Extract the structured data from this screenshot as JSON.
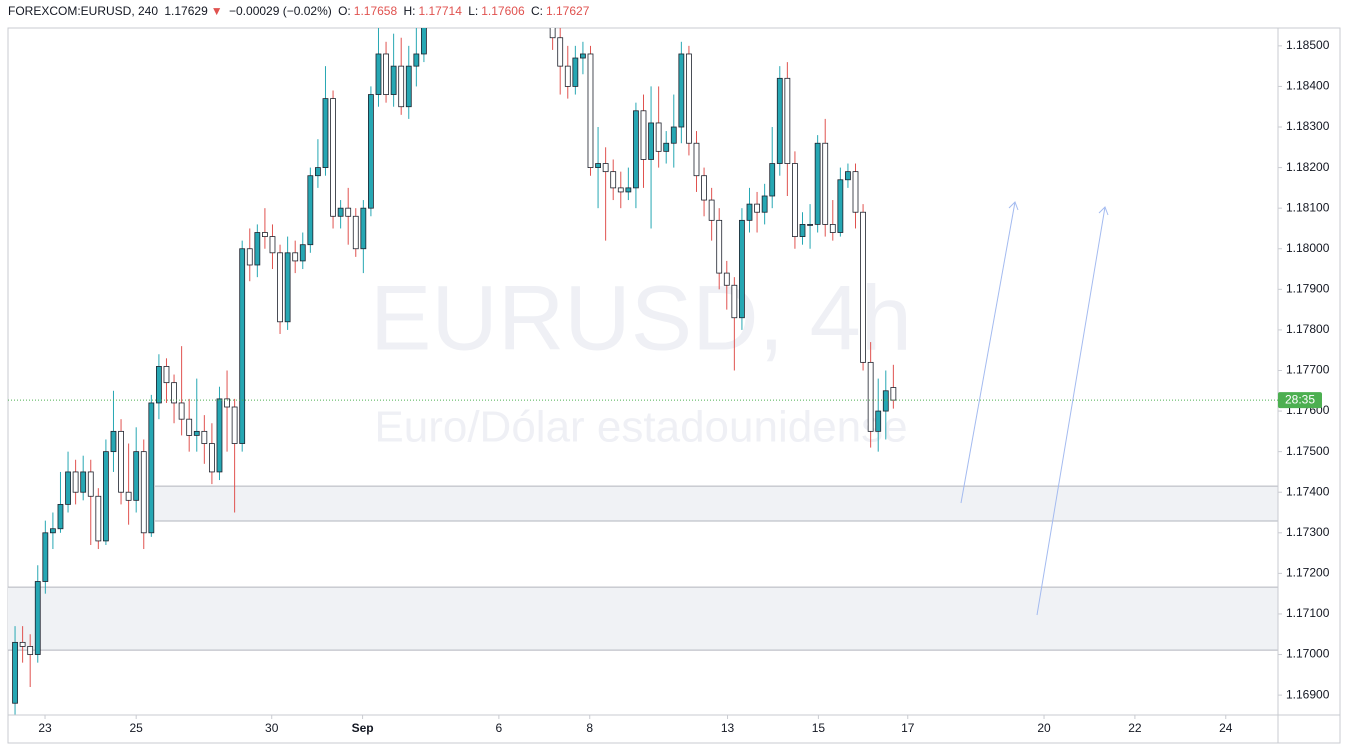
{
  "chart_data": {
    "type": "candlestick",
    "header": {
      "symbol": "FOREXCOM:EURUSD, 240",
      "last": "1.17629",
      "arrow": "▼",
      "change": "−0.00029 (−0.02%)",
      "o_label": "O:",
      "o": "1.17658",
      "h_label": "H:",
      "h": "1.17714",
      "l_label": "L:",
      "l": "1.17606",
      "c_label": "C:",
      "c": "1.17627"
    },
    "watermark": "EURUSD, 4h",
    "watermark_subtitle": "Euro/Dólar estadounidense",
    "countdown": "28:35",
    "up_color": "#26a7b3",
    "down_color": "#ffffff",
    "border_color": "#1e222d",
    "up_wick_color": "#26a7b3",
    "down_wick_color": "#e0524f",
    "price_line_color": "#4caf50",
    "zone_color": "#f0f2f5",
    "zones": [
      {
        "from": 18.5,
        "top": 1.17415,
        "bottom": 1.17329
      },
      {
        "from": -0.93,
        "top": 1.17166,
        "bottom": 1.17011
      }
    ],
    "open": [
      1.1688,
      1.1703,
      1.1702,
      1.17,
      1.1718,
      1.173,
      1.1731,
      1.1737,
      1.1745,
      1.174,
      1.1745,
      1.1739,
      1.1728,
      1.175,
      1.1755,
      1.174,
      1.1738,
      1.175,
      1.173,
      1.1762,
      1.1771,
      1.1767,
      1.1762,
      1.1758,
      1.1754,
      1.1755,
      1.1752,
      1.1745,
      1.1763,
      1.1761,
      1.1752,
      1.18,
      1.1796,
      1.1804,
      1.1803,
      1.1799,
      1.1782,
      1.1799,
      1.1797,
      1.1801,
      1.1818,
      1.182,
      1.1837,
      1.1808,
      1.181,
      1.1808,
      1.18,
      1.181,
      1.1838,
      1.1848,
      1.1838,
      1.1845,
      1.1835,
      1.1845,
      1.1848,
      null,
      null,
      null,
      null,
      null,
      null,
      null,
      null,
      null,
      null,
      null,
      null,
      null,
      null,
      null,
      null,
      1.1856,
      1.1852,
      1.1845,
      1.184,
      1.1847,
      1.1848,
      1.182,
      1.1821,
      1.1819,
      1.1815,
      1.1814,
      1.1815,
      1.1834,
      1.1822,
      1.1831,
      1.1824,
      1.1826,
      1.183,
      1.1848,
      1.1826,
      1.1818,
      1.1812,
      1.1807,
      1.1794,
      1.1791,
      1.1783,
      1.1807,
      1.1811,
      1.1809,
      1.1813,
      1.1821,
      1.1842,
      1.1821,
      1.1803,
      1.1806,
      1.1806,
      1.1826,
      1.1806,
      1.1804,
      1.1817,
      1.1819,
      1.1809,
      1.1772,
      1.1755,
      1.176,
      1.17658
    ],
    "high": [
      1.1707,
      1.1707,
      1.1705,
      1.1722,
      1.1733,
      1.1735,
      1.1745,
      1.175,
      1.1748,
      1.1749,
      1.1748,
      1.1741,
      1.1753,
      1.1765,
      1.1758,
      1.1752,
      1.1756,
      1.1753,
      1.1764,
      1.1774,
      1.1773,
      1.1769,
      1.1776,
      1.1763,
      1.1768,
      1.1759,
      1.1757,
      1.1766,
      1.177,
      1.1763,
      1.1802,
      1.1805,
      1.1806,
      1.181,
      1.1806,
      1.1801,
      1.1803,
      1.1802,
      1.1804,
      1.182,
      1.1827,
      1.1845,
      1.1839,
      1.1812,
      1.1815,
      1.181,
      1.1812,
      1.184,
      1.1856,
      1.1851,
      1.1853,
      1.1852,
      1.185,
      1.1855,
      1.186,
      null,
      null,
      null,
      null,
      null,
      null,
      null,
      null,
      null,
      null,
      null,
      null,
      null,
      null,
      null,
      null,
      1.1858,
      1.1855,
      1.185,
      1.185,
      1.1851,
      1.185,
      1.183,
      1.1825,
      1.1822,
      1.1819,
      1.182,
      1.1836,
      1.1838,
      1.184,
      1.184,
      1.1829,
      1.1838,
      1.1851,
      1.185,
      1.1829,
      1.182,
      1.1815,
      1.181,
      1.1797,
      1.1793,
      1.181,
      1.1815,
      1.1814,
      1.1816,
      1.183,
      1.1845,
      1.1846,
      1.1824,
      1.1809,
      1.1811,
      1.1828,
      1.1832,
      1.1812,
      1.182,
      1.1821,
      1.1821,
      1.1811,
      1.1777,
      1.1768,
      1.177,
      1.17714
    ],
    "low": [
      1.1684,
      1.1698,
      1.1692,
      1.1698,
      1.1715,
      1.1726,
      1.173,
      1.1735,
      1.1737,
      1.1738,
      1.1727,
      1.1726,
      1.1727,
      1.1745,
      1.1737,
      1.1732,
      1.1735,
      1.1726,
      1.1729,
      1.1758,
      1.1762,
      1.1757,
      1.1754,
      1.175,
      1.175,
      1.1747,
      1.1742,
      1.1743,
      1.175,
      1.1735,
      1.175,
      1.1792,
      1.1793,
      1.18,
      1.1795,
      1.1779,
      1.178,
      1.1794,
      1.1795,
      1.1799,
      1.1815,
      1.1818,
      1.1805,
      1.1805,
      1.1801,
      1.1798,
      1.1794,
      1.1808,
      1.1835,
      1.1836,
      1.1835,
      1.1833,
      1.1832,
      1.184,
      1.1846,
      null,
      null,
      null,
      null,
      null,
      null,
      null,
      null,
      null,
      null,
      null,
      null,
      null,
      null,
      null,
      null,
      1.1849,
      1.1838,
      1.1837,
      1.1838,
      1.1843,
      1.1818,
      1.181,
      1.1802,
      1.1812,
      1.181,
      1.1812,
      1.181,
      1.1815,
      1.1805,
      1.182,
      1.1821,
      1.182,
      1.1826,
      1.1823,
      1.1814,
      1.1808,
      1.1802,
      1.179,
      1.1785,
      1.177,
      1.178,
      1.1804,
      1.1804,
      1.1806,
      1.181,
      1.1818,
      1.1813,
      1.18,
      1.1801,
      1.18,
      1.1804,
      1.1803,
      1.1802,
      1.1803,
      1.1815,
      1.1805,
      1.177,
      1.1751,
      1.175,
      1.1753,
      1.17606
    ],
    "close": [
      1.1703,
      1.1702,
      1.17,
      1.1718,
      1.173,
      1.1731,
      1.1737,
      1.1745,
      1.174,
      1.1745,
      1.1739,
      1.1728,
      1.175,
      1.1755,
      1.174,
      1.1738,
      1.175,
      1.173,
      1.1762,
      1.1771,
      1.1767,
      1.1762,
      1.1758,
      1.1754,
      1.1755,
      1.1752,
      1.1745,
      1.1763,
      1.1761,
      1.1752,
      1.18,
      1.1796,
      1.1804,
      1.1803,
      1.1799,
      1.1782,
      1.1799,
      1.1797,
      1.1801,
      1.1818,
      1.182,
      1.1837,
      1.1808,
      1.181,
      1.1808,
      1.18,
      1.181,
      1.1838,
      1.1848,
      1.1838,
      1.1845,
      1.1835,
      1.1845,
      1.1848,
      1.1855,
      null,
      null,
      null,
      null,
      null,
      null,
      null,
      null,
      null,
      null,
      null,
      null,
      null,
      null,
      null,
      null,
      1.1852,
      1.1845,
      1.184,
      1.1847,
      1.1848,
      1.182,
      1.1821,
      1.1819,
      1.1815,
      1.1814,
      1.1815,
      1.1834,
      1.1822,
      1.1831,
      1.1824,
      1.1826,
      1.183,
      1.1848,
      1.1826,
      1.1818,
      1.1812,
      1.1807,
      1.1794,
      1.1791,
      1.1783,
      1.1807,
      1.1811,
      1.1809,
      1.1813,
      1.1821,
      1.1842,
      1.1821,
      1.1803,
      1.1806,
      1.1806,
      1.1826,
      1.1806,
      1.1804,
      1.1817,
      1.1819,
      1.1809,
      1.1772,
      1.1755,
      1.176,
      1.1765,
      1.17627
    ],
    "xlim": [
      -0.93,
      166.8
    ],
    "xticks": [
      {
        "value": 3.96,
        "label": "23"
      },
      {
        "value": 16.0,
        "label": "25"
      },
      {
        "value": 33.9,
        "label": "30"
      },
      {
        "value": 45.9,
        "label": "Sep"
      },
      {
        "value": 63.9,
        "label": "6"
      },
      {
        "value": 75.9,
        "label": "8"
      },
      {
        "value": 94.1,
        "label": "13"
      },
      {
        "value": 106.1,
        "label": "15"
      },
      {
        "value": 117.9,
        "label": "17"
      },
      {
        "value": 135.9,
        "label": "20"
      },
      {
        "value": 147.9,
        "label": "22"
      },
      {
        "value": 159.9,
        "label": "24"
      }
    ],
    "ylim": [
      1.16851,
      1.18544
    ],
    "yticks": [
      {
        "value": 1.169,
        "label": "1.16900"
      },
      {
        "value": 1.17,
        "label": "1.17000"
      },
      {
        "value": 1.171,
        "label": "1.17100"
      },
      {
        "value": 1.172,
        "label": "1.17200"
      },
      {
        "value": 1.173,
        "label": "1.17300"
      },
      {
        "value": 1.174,
        "label": "1.17400"
      },
      {
        "value": 1.175,
        "label": "1.17500"
      },
      {
        "value": 1.176,
        "label": "1.17600"
      },
      {
        "value": 1.177,
        "label": "1.17700"
      },
      {
        "value": 1.178,
        "label": "1.17800"
      },
      {
        "value": 1.179,
        "label": "1.17900"
      },
      {
        "value": 1.18,
        "label": "1.18000"
      },
      {
        "value": 1.181,
        "label": "1.18100"
      },
      {
        "value": 1.182,
        "label": "1.18200"
      },
      {
        "value": 1.183,
        "label": "1.18300"
      },
      {
        "value": 1.184,
        "label": "1.18400"
      },
      {
        "value": 1.185,
        "label": "1.18500"
      }
    ]
  }
}
